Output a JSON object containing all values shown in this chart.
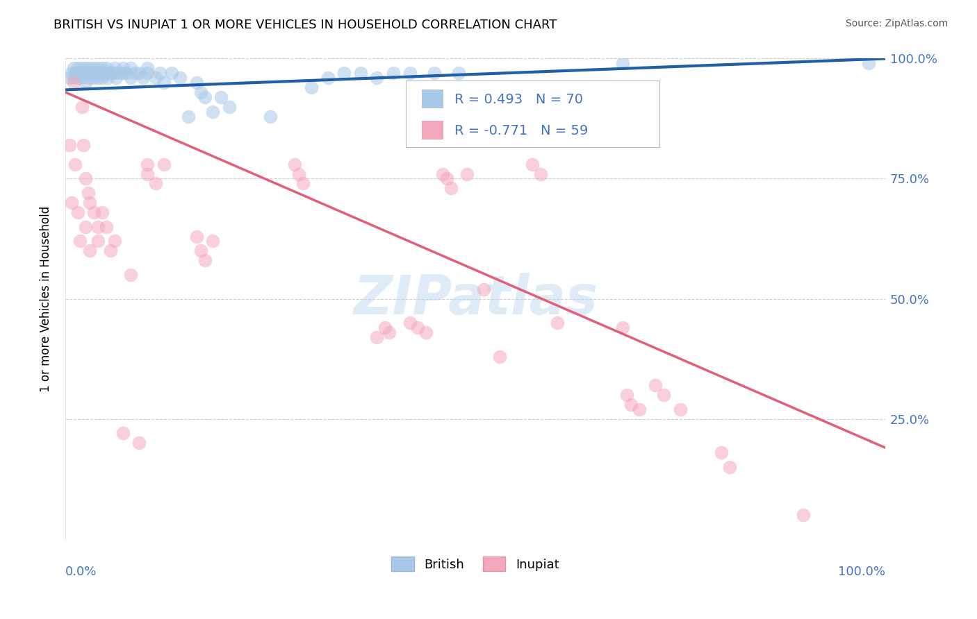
{
  "title": "BRITISH VS INUPIAT 1 OR MORE VEHICLES IN HOUSEHOLD CORRELATION CHART",
  "source": "Source: ZipAtlas.com",
  "ylabel": "1 or more Vehicles in Household",
  "legend_british": "British",
  "legend_inupiat": "Inupiat",
  "r_british": 0.493,
  "n_british": 70,
  "r_inupiat": -0.771,
  "n_inupiat": 59,
  "british_color": "#a8c8e8",
  "inupiat_color": "#f4a8bc",
  "british_line_color": "#1f5fa6",
  "inupiat_line_color": "#e0607a",
  "ytick_values": [
    1.0,
    0.75,
    0.5,
    0.25
  ],
  "watermark": "ZIPatlas",
  "british_points": [
    [
      0.005,
      0.96
    ],
    [
      0.008,
      0.97
    ],
    [
      0.01,
      0.98
    ],
    [
      0.01,
      0.96
    ],
    [
      0.012,
      0.97
    ],
    [
      0.015,
      0.98
    ],
    [
      0.015,
      0.96
    ],
    [
      0.018,
      0.97
    ],
    [
      0.02,
      0.98
    ],
    [
      0.02,
      0.96
    ],
    [
      0.022,
      0.97
    ],
    [
      0.025,
      0.98
    ],
    [
      0.025,
      0.97
    ],
    [
      0.025,
      0.95
    ],
    [
      0.028,
      0.97
    ],
    [
      0.03,
      0.98
    ],
    [
      0.03,
      0.96
    ],
    [
      0.032,
      0.97
    ],
    [
      0.035,
      0.98
    ],
    [
      0.035,
      0.96
    ],
    [
      0.038,
      0.97
    ],
    [
      0.04,
      0.98
    ],
    [
      0.04,
      0.97
    ],
    [
      0.04,
      0.96
    ],
    [
      0.042,
      0.97
    ],
    [
      0.045,
      0.98
    ],
    [
      0.045,
      0.96
    ],
    [
      0.048,
      0.97
    ],
    [
      0.05,
      0.98
    ],
    [
      0.05,
      0.97
    ],
    [
      0.052,
      0.96
    ],
    [
      0.055,
      0.97
    ],
    [
      0.06,
      0.98
    ],
    [
      0.06,
      0.97
    ],
    [
      0.062,
      0.96
    ],
    [
      0.065,
      0.97
    ],
    [
      0.07,
      0.98
    ],
    [
      0.07,
      0.97
    ],
    [
      0.075,
      0.97
    ],
    [
      0.08,
      0.98
    ],
    [
      0.08,
      0.96
    ],
    [
      0.085,
      0.97
    ],
    [
      0.09,
      0.97
    ],
    [
      0.095,
      0.96
    ],
    [
      0.1,
      0.98
    ],
    [
      0.1,
      0.97
    ],
    [
      0.11,
      0.96
    ],
    [
      0.115,
      0.97
    ],
    [
      0.12,
      0.95
    ],
    [
      0.13,
      0.97
    ],
    [
      0.14,
      0.96
    ],
    [
      0.15,
      0.88
    ],
    [
      0.16,
      0.95
    ],
    [
      0.165,
      0.93
    ],
    [
      0.17,
      0.92
    ],
    [
      0.18,
      0.89
    ],
    [
      0.19,
      0.92
    ],
    [
      0.2,
      0.9
    ],
    [
      0.25,
      0.88
    ],
    [
      0.3,
      0.94
    ],
    [
      0.32,
      0.96
    ],
    [
      0.34,
      0.97
    ],
    [
      0.36,
      0.97
    ],
    [
      0.38,
      0.96
    ],
    [
      0.4,
      0.97
    ],
    [
      0.42,
      0.97
    ],
    [
      0.45,
      0.97
    ],
    [
      0.48,
      0.97
    ],
    [
      0.68,
      0.99
    ],
    [
      0.98,
      0.99
    ]
  ],
  "inupiat_points": [
    [
      0.005,
      0.82
    ],
    [
      0.008,
      0.7
    ],
    [
      0.01,
      0.95
    ],
    [
      0.012,
      0.78
    ],
    [
      0.015,
      0.68
    ],
    [
      0.018,
      0.62
    ],
    [
      0.02,
      0.9
    ],
    [
      0.022,
      0.82
    ],
    [
      0.025,
      0.75
    ],
    [
      0.025,
      0.65
    ],
    [
      0.028,
      0.72
    ],
    [
      0.03,
      0.7
    ],
    [
      0.03,
      0.6
    ],
    [
      0.035,
      0.68
    ],
    [
      0.04,
      0.65
    ],
    [
      0.04,
      0.62
    ],
    [
      0.045,
      0.68
    ],
    [
      0.05,
      0.65
    ],
    [
      0.055,
      0.6
    ],
    [
      0.06,
      0.62
    ],
    [
      0.07,
      0.22
    ],
    [
      0.08,
      0.55
    ],
    [
      0.09,
      0.2
    ],
    [
      0.1,
      0.78
    ],
    [
      0.1,
      0.76
    ],
    [
      0.11,
      0.74
    ],
    [
      0.12,
      0.78
    ],
    [
      0.16,
      0.63
    ],
    [
      0.165,
      0.6
    ],
    [
      0.17,
      0.58
    ],
    [
      0.18,
      0.62
    ],
    [
      0.28,
      0.78
    ],
    [
      0.285,
      0.76
    ],
    [
      0.29,
      0.74
    ],
    [
      0.38,
      0.42
    ],
    [
      0.39,
      0.44
    ],
    [
      0.395,
      0.43
    ],
    [
      0.42,
      0.45
    ],
    [
      0.43,
      0.44
    ],
    [
      0.44,
      0.43
    ],
    [
      0.46,
      0.76
    ],
    [
      0.465,
      0.75
    ],
    [
      0.47,
      0.73
    ],
    [
      0.49,
      0.76
    ],
    [
      0.51,
      0.52
    ],
    [
      0.53,
      0.38
    ],
    [
      0.57,
      0.78
    ],
    [
      0.58,
      0.76
    ],
    [
      0.6,
      0.45
    ],
    [
      0.68,
      0.44
    ],
    [
      0.685,
      0.3
    ],
    [
      0.69,
      0.28
    ],
    [
      0.7,
      0.27
    ],
    [
      0.72,
      0.32
    ],
    [
      0.73,
      0.3
    ],
    [
      0.75,
      0.27
    ],
    [
      0.8,
      0.18
    ],
    [
      0.81,
      0.15
    ],
    [
      0.9,
      0.05
    ]
  ]
}
